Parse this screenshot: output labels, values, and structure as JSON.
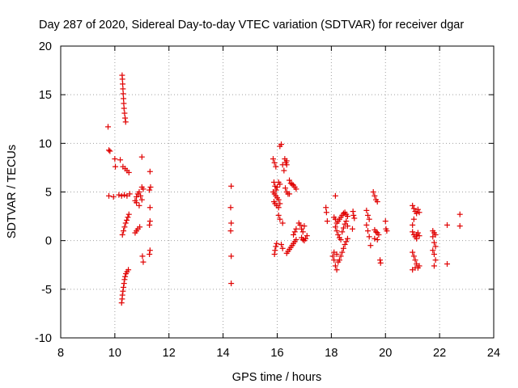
{
  "chart_data": {
    "type": "scatter",
    "title": "Day 287 of 2020, Sidereal Day-to-day VTEC variation (SDTVAR) for receiver dgar",
    "xlabel": "GPS time / hours",
    "ylabel": "SDTVAR / TECUs",
    "xlim": [
      8,
      24
    ],
    "ylim": [
      -10,
      20
    ],
    "xticks": [
      8,
      10,
      12,
      14,
      16,
      18,
      20,
      22,
      24
    ],
    "yticks": [
      -10,
      -5,
      0,
      5,
      10,
      15,
      20
    ],
    "grid": true,
    "marker": "+",
    "color": "#e00000",
    "series": [
      {
        "name": "SDTVAR",
        "points": [
          [
            9.75,
            11.7
          ],
          [
            9.78,
            9.3
          ],
          [
            9.82,
            9.2
          ],
          [
            9.78,
            4.6
          ],
          [
            9.95,
            4.5
          ],
          [
            10.0,
            8.4
          ],
          [
            10.02,
            7.6
          ],
          [
            10.2,
            8.3
          ],
          [
            10.15,
            4.7
          ],
          [
            10.27,
            17.0
          ],
          [
            10.28,
            16.6
          ],
          [
            10.29,
            16.1
          ],
          [
            10.3,
            15.6
          ],
          [
            10.31,
            15.1
          ],
          [
            10.32,
            14.6
          ],
          [
            10.33,
            14.1
          ],
          [
            10.34,
            13.6
          ],
          [
            10.36,
            13.1
          ],
          [
            10.38,
            12.6
          ],
          [
            10.4,
            12.2
          ],
          [
            10.3,
            7.6
          ],
          [
            10.38,
            7.4
          ],
          [
            10.45,
            7.2
          ],
          [
            10.52,
            7.0
          ],
          [
            10.25,
            4.6
          ],
          [
            10.35,
            4.7
          ],
          [
            10.45,
            4.6
          ],
          [
            10.55,
            4.8
          ],
          [
            10.28,
            0.6
          ],
          [
            10.32,
            1.0
          ],
          [
            10.36,
            1.4
          ],
          [
            10.4,
            1.8
          ],
          [
            10.44,
            2.1
          ],
          [
            10.48,
            2.4
          ],
          [
            10.52,
            2.7
          ],
          [
            10.25,
            -6.4
          ],
          [
            10.27,
            -6.0
          ],
          [
            10.28,
            -5.6
          ],
          [
            10.3,
            -5.2
          ],
          [
            10.32,
            -4.8
          ],
          [
            10.34,
            -4.4
          ],
          [
            10.36,
            -4.0
          ],
          [
            10.38,
            -3.7
          ],
          [
            10.41,
            -3.4
          ],
          [
            10.45,
            -3.2
          ],
          [
            10.5,
            -3.0
          ],
          [
            10.75,
            4.1
          ],
          [
            10.8,
            4.5
          ],
          [
            10.85,
            4.8
          ],
          [
            10.9,
            5.0
          ],
          [
            10.95,
            4.6
          ],
          [
            11.0,
            4.2
          ],
          [
            10.8,
            3.9
          ],
          [
            10.9,
            3.6
          ],
          [
            11.05,
            5.3
          ],
          [
            11.0,
            5.5
          ],
          [
            10.75,
            0.8
          ],
          [
            10.8,
            1.0
          ],
          [
            10.85,
            1.2
          ],
          [
            10.92,
            1.4
          ],
          [
            11.0,
            8.6
          ],
          [
            11.05,
            -2.2
          ],
          [
            11.02,
            -1.6
          ],
          [
            11.3,
            7.1
          ],
          [
            11.32,
            5.5
          ],
          [
            11.28,
            5.2
          ],
          [
            11.3,
            3.4
          ],
          [
            11.3,
            2.0
          ],
          [
            11.28,
            1.6
          ],
          [
            11.3,
            -1.0
          ],
          [
            11.28,
            -1.4
          ],
          [
            14.3,
            5.6
          ],
          [
            14.28,
            3.4
          ],
          [
            14.3,
            1.8
          ],
          [
            14.28,
            1.0
          ],
          [
            14.3,
            -1.6
          ],
          [
            14.3,
            -4.4
          ],
          [
            15.85,
            8.4
          ],
          [
            15.9,
            8.0
          ],
          [
            15.95,
            7.6
          ],
          [
            15.88,
            6.0
          ],
          [
            15.92,
            5.6
          ],
          [
            15.96,
            5.2
          ],
          [
            15.85,
            5.0
          ],
          [
            15.9,
            4.8
          ],
          [
            15.95,
            4.6
          ],
          [
            16.0,
            4.4
          ],
          [
            16.05,
            4.2
          ],
          [
            15.88,
            4.0
          ],
          [
            15.92,
            3.8
          ],
          [
            15.98,
            3.6
          ],
          [
            16.05,
            3.4
          ],
          [
            16.1,
            3.8
          ],
          [
            16.1,
            5.8
          ],
          [
            16.05,
            6.0
          ],
          [
            16.0,
            5.5
          ],
          [
            16.15,
            9.9
          ],
          [
            16.1,
            9.7
          ],
          [
            16.2,
            7.8
          ],
          [
            16.25,
            7.2
          ],
          [
            16.28,
            8.4
          ],
          [
            16.32,
            8.0
          ],
          [
            16.35,
            8.2
          ],
          [
            16.35,
            7.8
          ],
          [
            16.3,
            5.4
          ],
          [
            16.35,
            5.0
          ],
          [
            16.4,
            4.8
          ],
          [
            16.45,
            4.8
          ],
          [
            16.45,
            6.2
          ],
          [
            16.5,
            5.9
          ],
          [
            16.55,
            5.8
          ],
          [
            16.6,
            5.7
          ],
          [
            16.65,
            5.5
          ],
          [
            16.7,
            5.3
          ],
          [
            15.9,
            -1.4
          ],
          [
            15.92,
            -1.0
          ],
          [
            15.95,
            -0.6
          ],
          [
            15.98,
            -0.3
          ],
          [
            16.05,
            2.6
          ],
          [
            16.1,
            2.2
          ],
          [
            16.2,
            1.8
          ],
          [
            16.15,
            -0.4
          ],
          [
            16.2,
            -0.8
          ],
          [
            16.35,
            -1.3
          ],
          [
            16.4,
            -1.1
          ],
          [
            16.45,
            -0.9
          ],
          [
            16.5,
            -0.7
          ],
          [
            16.55,
            -0.5
          ],
          [
            16.6,
            -0.3
          ],
          [
            16.65,
            -0.1
          ],
          [
            16.7,
            0.1
          ],
          [
            16.6,
            0.6
          ],
          [
            16.65,
            0.9
          ],
          [
            16.7,
            1.2
          ],
          [
            16.8,
            1.8
          ],
          [
            16.85,
            1.6
          ],
          [
            16.9,
            1.2
          ],
          [
            16.95,
            0.9
          ],
          [
            17.0,
            1.5
          ],
          [
            16.9,
            0.3
          ],
          [
            16.95,
            0.1
          ],
          [
            17.0,
            0.0
          ],
          [
            17.05,
            0.2
          ],
          [
            17.1,
            0.5
          ],
          [
            17.8,
            3.4
          ],
          [
            17.82,
            2.9
          ],
          [
            17.85,
            2.0
          ],
          [
            18.15,
            4.6
          ],
          [
            18.1,
            2.4
          ],
          [
            18.15,
            2.2
          ],
          [
            18.2,
            1.8
          ],
          [
            18.25,
            2.0
          ],
          [
            18.3,
            2.2
          ],
          [
            18.35,
            2.4
          ],
          [
            18.4,
            2.6
          ],
          [
            18.45,
            2.8
          ],
          [
            18.5,
            2.9
          ],
          [
            18.55,
            2.7
          ],
          [
            18.6,
            2.5
          ],
          [
            18.15,
            1.4
          ],
          [
            18.2,
            1.0
          ],
          [
            18.25,
            0.6
          ],
          [
            18.3,
            0.3
          ],
          [
            18.35,
            0.1
          ],
          [
            18.4,
            0.9
          ],
          [
            18.45,
            1.3
          ],
          [
            18.5,
            1.7
          ],
          [
            18.55,
            2.0
          ],
          [
            18.6,
            1.5
          ],
          [
            18.05,
            -1.6
          ],
          [
            18.1,
            -2.0
          ],
          [
            18.15,
            -2.6
          ],
          [
            18.2,
            -3.0
          ],
          [
            18.1,
            -1.2
          ],
          [
            18.2,
            -1.4
          ],
          [
            18.25,
            -2.2
          ],
          [
            18.3,
            -2.0
          ],
          [
            18.35,
            -1.6
          ],
          [
            18.4,
            -1.2
          ],
          [
            18.45,
            -0.8
          ],
          [
            18.5,
            -0.4
          ],
          [
            18.55,
            -0.1
          ],
          [
            18.6,
            0.2
          ],
          [
            18.8,
            3.0
          ],
          [
            18.82,
            2.6
          ],
          [
            18.85,
            2.3
          ],
          [
            18.78,
            1.2
          ],
          [
            19.3,
            3.1
          ],
          [
            19.35,
            2.6
          ],
          [
            19.4,
            2.2
          ],
          [
            19.3,
            1.6
          ],
          [
            19.35,
            1.0
          ],
          [
            19.4,
            0.4
          ],
          [
            19.45,
            -0.5
          ],
          [
            19.55,
            5.0
          ],
          [
            19.6,
            4.6
          ],
          [
            19.65,
            4.2
          ],
          [
            19.7,
            4.0
          ],
          [
            19.6,
            1.1
          ],
          [
            19.65,
            0.9
          ],
          [
            19.7,
            0.8
          ],
          [
            19.75,
            0.6
          ],
          [
            19.6,
            0.2
          ],
          [
            19.7,
            0.1
          ],
          [
            19.8,
            -2.0
          ],
          [
            19.82,
            -2.3
          ],
          [
            20.0,
            2.0
          ],
          [
            20.02,
            1.2
          ],
          [
            20.05,
            1.0
          ],
          [
            21.0,
            3.6
          ],
          [
            21.05,
            3.3
          ],
          [
            21.1,
            3.0
          ],
          [
            21.15,
            2.8
          ],
          [
            21.2,
            3.2
          ],
          [
            21.25,
            2.9
          ],
          [
            21.05,
            2.2
          ],
          [
            21.0,
            1.6
          ],
          [
            21.0,
            0.9
          ],
          [
            21.05,
            0.6
          ],
          [
            21.1,
            0.4
          ],
          [
            21.15,
            0.6
          ],
          [
            21.2,
            0.8
          ],
          [
            21.25,
            0.5
          ],
          [
            21.15,
            0.2
          ],
          [
            21.0,
            -1.2
          ],
          [
            21.05,
            -1.6
          ],
          [
            21.1,
            -2.0
          ],
          [
            21.15,
            -2.4
          ],
          [
            21.2,
            -2.8
          ],
          [
            21.0,
            -3.0
          ],
          [
            21.1,
            -2.8
          ],
          [
            21.25,
            -2.6
          ],
          [
            21.75,
            1.0
          ],
          [
            21.8,
            0.8
          ],
          [
            21.85,
            0.6
          ],
          [
            21.75,
            0.4
          ],
          [
            21.8,
            -0.2
          ],
          [
            21.85,
            -0.6
          ],
          [
            21.75,
            -1.0
          ],
          [
            21.8,
            -1.4
          ],
          [
            21.85,
            -2.0
          ],
          [
            21.8,
            -2.6
          ],
          [
            22.28,
            1.6
          ],
          [
            22.28,
            -2.4
          ],
          [
            22.75,
            2.7
          ],
          [
            22.75,
            1.5
          ]
        ]
      }
    ]
  }
}
